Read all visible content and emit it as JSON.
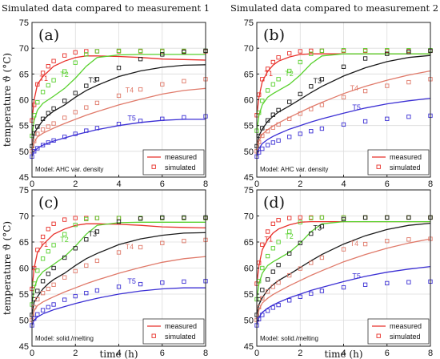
{
  "figure": {
    "ylabel": "temperature ϑ (°C)",
    "xlabel": "time (h)",
    "legend_labels": {
      "measured": "measured",
      "simulated": "simulated"
    }
  },
  "chart_data": [
    {
      "type": "line",
      "panel": "(a)",
      "title": "Simulated data compared to measurement 1",
      "model": "Model: AHC var. density",
      "xlabel": "",
      "ylabel": "temperature ϑ (°C)",
      "xlim": [
        0,
        8
      ],
      "ylim": [
        45,
        75
      ],
      "xticks": [
        0,
        2,
        4,
        6,
        8
      ],
      "yticks": [
        45,
        50,
        55,
        60,
        65,
        70,
        75
      ],
      "grid": true,
      "legend": "bottom-right",
      "x": [
        0,
        0.1,
        0.25,
        0.5,
        0.75,
        1,
        1.5,
        2,
        2.5,
        3,
        4,
        5,
        6,
        7,
        8
      ],
      "series": [
        {
          "name": "T1",
          "color": "#e8312b",
          "measured": [
            56,
            60,
            63,
            64.5,
            65.5,
            66.5,
            67.5,
            68.2,
            68.5,
            68.5,
            68.4,
            68.2,
            67.9,
            67.8,
            67.7
          ],
          "simulated": [
            56,
            59,
            63,
            65.2,
            66.5,
            67.5,
            68.6,
            69.2,
            69.4,
            69.4,
            69.4,
            69.4,
            69.4,
            69.4,
            69.4
          ]
        },
        {
          "name": "T2",
          "color": "#59d12e",
          "measured": [
            53,
            56,
            58,
            59.3,
            60,
            60.7,
            62.2,
            64.2,
            66.5,
            68.2,
            68.7,
            68.8,
            68.8,
            68.8,
            68.8
          ],
          "simulated": [
            53,
            57,
            59.5,
            61.5,
            62.8,
            63.8,
            65.5,
            67.2,
            68.8,
            69.4,
            69.5,
            69.5,
            69.5,
            69.5,
            69.5
          ]
        },
        {
          "name": "T3",
          "color": "#1a1a1a",
          "measured": [
            51,
            53.5,
            54.5,
            56,
            57,
            57.8,
            59,
            60.5,
            61.8,
            62.8,
            64.5,
            65.6,
            66.3,
            66.7,
            66.8
          ],
          "simulated": [
            51,
            53.5,
            54.8,
            56.3,
            57.4,
            58.3,
            59.8,
            61.3,
            62.7,
            64,
            66.2,
            67.9,
            68.8,
            69.3,
            69.5
          ]
        },
        {
          "name": "T4",
          "color": "#e07a6a",
          "measured": [
            50,
            51.8,
            52.8,
            53.5,
            54,
            54.5,
            55.4,
            56.2,
            57,
            57.7,
            59,
            60.1,
            61.1,
            61.8,
            62.2
          ],
          "simulated": [
            50,
            52,
            53.4,
            54.2,
            54.8,
            55.4,
            56.5,
            57.6,
            58.5,
            59.4,
            60.8,
            62,
            63,
            63.6,
            64
          ]
        },
        {
          "name": "T5",
          "color": "#3b2fd4",
          "measured": [
            49,
            50,
            50.6,
            51.2,
            51.6,
            52,
            52.6,
            53.2,
            53.7,
            54.2,
            55,
            55.6,
            56,
            56.2,
            56.2
          ],
          "simulated": [
            49,
            50,
            50.6,
            51.2,
            51.7,
            52.1,
            52.8,
            53.4,
            54,
            54.5,
            55.3,
            55.9,
            56.3,
            56.6,
            56.8
          ]
        }
      ]
    },
    {
      "type": "line",
      "panel": "(b)",
      "title": "Simulated data compared to measurement 2",
      "model": "Model: AHC var. density",
      "xlabel": "",
      "ylabel": "",
      "xlim": [
        0,
        8
      ],
      "ylim": [
        45,
        75
      ],
      "xticks": [
        0,
        2,
        4,
        6,
        8
      ],
      "yticks": [
        45,
        50,
        55,
        60,
        65,
        70,
        75
      ],
      "grid": true,
      "legend": "bottom-right",
      "x": [
        0,
        0.1,
        0.25,
        0.5,
        0.75,
        1,
        1.5,
        2,
        2.5,
        3,
        4,
        5,
        6,
        7,
        8
      ],
      "series": [
        {
          "name": "T1",
          "color": "#e8312b",
          "measured": [
            57,
            60.5,
            63.5,
            65.5,
            66.7,
            67.5,
            68.3,
            68.8,
            68.9,
            68.9,
            68.9,
            68.9,
            68.9,
            68.9,
            68.9
          ],
          "simulated": [
            57,
            61,
            64,
            66,
            67.3,
            68.2,
            69,
            69.4,
            69.5,
            69.5,
            69.5,
            69.5,
            69.5,
            69.5,
            69.5
          ]
        },
        {
          "name": "T2",
          "color": "#59d12e",
          "measured": [
            54,
            57,
            59,
            60.5,
            61.2,
            61.8,
            63,
            64.8,
            67,
            68.5,
            68.9,
            68.9,
            68.9,
            68.9,
            68.9
          ],
          "simulated": [
            54,
            57.5,
            59.8,
            61.8,
            63,
            64,
            65.6,
            67.3,
            68.9,
            69.5,
            69.6,
            69.6,
            69.6,
            69.6,
            69.6
          ]
        },
        {
          "name": "T3",
          "color": "#1a1a1a",
          "measured": [
            51,
            53,
            54.3,
            55.8,
            56.8,
            57.6,
            58.8,
            60.1,
            61.4,
            62.6,
            64.6,
            66.2,
            67.4,
            68.2,
            68.6
          ],
          "simulated": [
            51,
            53,
            54.5,
            56,
            57.1,
            58,
            59.6,
            61.1,
            62.6,
            64,
            66.4,
            68,
            68.9,
            69.3,
            69.5
          ]
        },
        {
          "name": "T4",
          "color": "#e07a6a",
          "measured": [
            50,
            52,
            53.3,
            54.2,
            54.9,
            55.5,
            56.6,
            57.6,
            58.6,
            59.5,
            61.2,
            62.6,
            63.8,
            64.8,
            65.6
          ],
          "simulated": [
            50,
            51.8,
            53,
            53.9,
            54.6,
            55.2,
            56.3,
            57.3,
            58.2,
            59,
            60.5,
            61.7,
            62.7,
            63.4,
            64
          ]
        },
        {
          "name": "T5",
          "color": "#3b2fd4",
          "measured": [
            49,
            50.5,
            51.5,
            52.3,
            52.9,
            53.4,
            54.3,
            55,
            55.7,
            56.3,
            57.4,
            58.4,
            59.2,
            59.8,
            60.3
          ],
          "simulated": [
            49,
            49.8,
            50.5,
            51.2,
            51.7,
            52.1,
            52.8,
            53.4,
            53.9,
            54.4,
            55.2,
            55.8,
            56.3,
            56.7,
            56.9
          ]
        }
      ]
    },
    {
      "type": "line",
      "panel": "(c)",
      "title": "",
      "model": "Model: solid./melting",
      "xlabel": "time (h)",
      "ylabel": "temperature ϑ (°C)",
      "xlim": [
        0,
        8
      ],
      "ylim": [
        45,
        75
      ],
      "xticks": [
        0,
        2,
        4,
        6,
        8
      ],
      "yticks": [
        45,
        50,
        55,
        60,
        65,
        70,
        75
      ],
      "grid": true,
      "legend": "bottom-right",
      "x": [
        0,
        0.1,
        0.25,
        0.5,
        0.75,
        1,
        1.5,
        2,
        2.5,
        3,
        4,
        5,
        6,
        7,
        8
      ],
      "series": [
        {
          "name": "T1",
          "color": "#e8312b",
          "measured": [
            56,
            60,
            63,
            64.5,
            65.5,
            66.5,
            67.5,
            68.2,
            68.5,
            68.5,
            68.4,
            68.2,
            67.9,
            67.8,
            67.7
          ],
          "simulated": [
            56,
            60,
            63.5,
            66,
            67.5,
            68.5,
            69.3,
            69.6,
            69.6,
            69.6,
            69.6,
            69.6,
            69.6,
            69.6,
            69.6
          ]
        },
        {
          "name": "T2",
          "color": "#59d12e",
          "measured": [
            53,
            56,
            58,
            59.3,
            60,
            60.7,
            62.2,
            64.2,
            66.5,
            68.2,
            68.7,
            68.8,
            68.8,
            68.8,
            68.8
          ],
          "simulated": [
            53,
            57,
            59.5,
            61.8,
            63.2,
            64.4,
            66.5,
            68.3,
            69.4,
            69.6,
            69.6,
            69.6,
            69.6,
            69.6,
            69.6
          ]
        },
        {
          "name": "T3",
          "color": "#1a1a1a",
          "measured": [
            51,
            53.5,
            54.5,
            56,
            57,
            57.8,
            59,
            60.5,
            61.8,
            62.8,
            64.5,
            65.6,
            66.3,
            66.7,
            66.8
          ],
          "simulated": [
            51,
            54,
            55.6,
            57.5,
            58.9,
            60,
            62,
            63.8,
            65.5,
            67,
            68.9,
            69.5,
            69.7,
            69.7,
            69.7
          ]
        },
        {
          "name": "T4",
          "color": "#e07a6a",
          "measured": [
            50,
            51.8,
            52.8,
            53.5,
            54,
            54.5,
            55.4,
            56.2,
            57,
            57.7,
            59,
            60.1,
            61.1,
            61.8,
            62.2
          ],
          "simulated": [
            50,
            52.5,
            54,
            55.2,
            56,
            56.8,
            58.2,
            59.4,
            60.5,
            61.4,
            63,
            64,
            64.8,
            65.2,
            65.4
          ]
        },
        {
          "name": "T5",
          "color": "#3b2fd4",
          "measured": [
            49,
            50,
            50.6,
            51.2,
            51.6,
            52,
            52.6,
            53.2,
            53.7,
            54.2,
            55,
            55.6,
            56,
            56.2,
            56.2
          ],
          "simulated": [
            49,
            50.3,
            51.1,
            51.9,
            52.5,
            53,
            53.9,
            54.6,
            55.2,
            55.7,
            56.4,
            56.9,
            57.2,
            57.4,
            57.5
          ]
        }
      ]
    },
    {
      "type": "line",
      "panel": "(d)",
      "title": "",
      "model": "Model: solid./melting",
      "xlabel": "time (h)",
      "ylabel": "",
      "xlim": [
        0,
        8
      ],
      "ylim": [
        45,
        75
      ],
      "xticks": [
        0,
        2,
        4,
        6,
        8
      ],
      "yticks": [
        45,
        50,
        55,
        60,
        65,
        70,
        75
      ],
      "grid": true,
      "legend": "bottom-right",
      "x": [
        0,
        0.1,
        0.25,
        0.5,
        0.75,
        1,
        1.5,
        2,
        2.5,
        3,
        4,
        5,
        6,
        7,
        8
      ],
      "series": [
        {
          "name": "T1",
          "color": "#e8312b",
          "measured": [
            57,
            60.5,
            63.5,
            65.5,
            66.7,
            67.5,
            68.3,
            68.8,
            68.9,
            68.9,
            68.9,
            68.9,
            68.9,
            68.9,
            68.9
          ],
          "simulated": [
            57,
            61,
            64.5,
            67,
            68.5,
            69.2,
            69.6,
            69.7,
            69.7,
            69.7,
            69.7,
            69.7,
            69.7,
            69.7,
            69.7
          ]
        },
        {
          "name": "T2",
          "color": "#59d12e",
          "measured": [
            54,
            57,
            59,
            60.5,
            61.2,
            61.8,
            63,
            64.8,
            67,
            68.5,
            68.9,
            68.9,
            68.9,
            68.9,
            68.9
          ],
          "simulated": [
            54,
            57.5,
            60,
            62.3,
            63.8,
            65,
            67,
            68.8,
            69.6,
            69.7,
            69.7,
            69.7,
            69.7,
            69.7,
            69.7
          ]
        },
        {
          "name": "T3",
          "color": "#1a1a1a",
          "measured": [
            51,
            53,
            54.3,
            55.8,
            56.8,
            57.6,
            58.8,
            60.1,
            61.4,
            62.6,
            64.6,
            66.2,
            67.4,
            68.2,
            68.6
          ],
          "simulated": [
            51,
            54,
            55.8,
            57.8,
            59.3,
            60.6,
            62.8,
            64.8,
            66.6,
            68,
            69.4,
            69.7,
            69.7,
            69.7,
            69.7
          ]
        },
        {
          "name": "T4",
          "color": "#e07a6a",
          "measured": [
            50,
            52,
            53.3,
            54.2,
            54.9,
            55.5,
            56.6,
            57.6,
            58.6,
            59.5,
            61.2,
            62.6,
            63.8,
            64.8,
            65.6
          ],
          "simulated": [
            50,
            52.5,
            54.2,
            55.5,
            56.4,
            57.2,
            58.6,
            59.9,
            61,
            62,
            63.6,
            64.6,
            65.2,
            65.5,
            65.6
          ]
        },
        {
          "name": "T5",
          "color": "#3b2fd4",
          "measured": [
            49,
            50.5,
            51.5,
            52.3,
            52.9,
            53.4,
            54.3,
            55,
            55.7,
            56.3,
            57.4,
            58.4,
            59.2,
            59.8,
            60.3
          ],
          "simulated": [
            49,
            50.2,
            51,
            51.8,
            52.4,
            52.9,
            53.8,
            54.5,
            55.1,
            55.6,
            56.3,
            56.8,
            57.1,
            57.3,
            57.4
          ]
        }
      ]
    }
  ]
}
